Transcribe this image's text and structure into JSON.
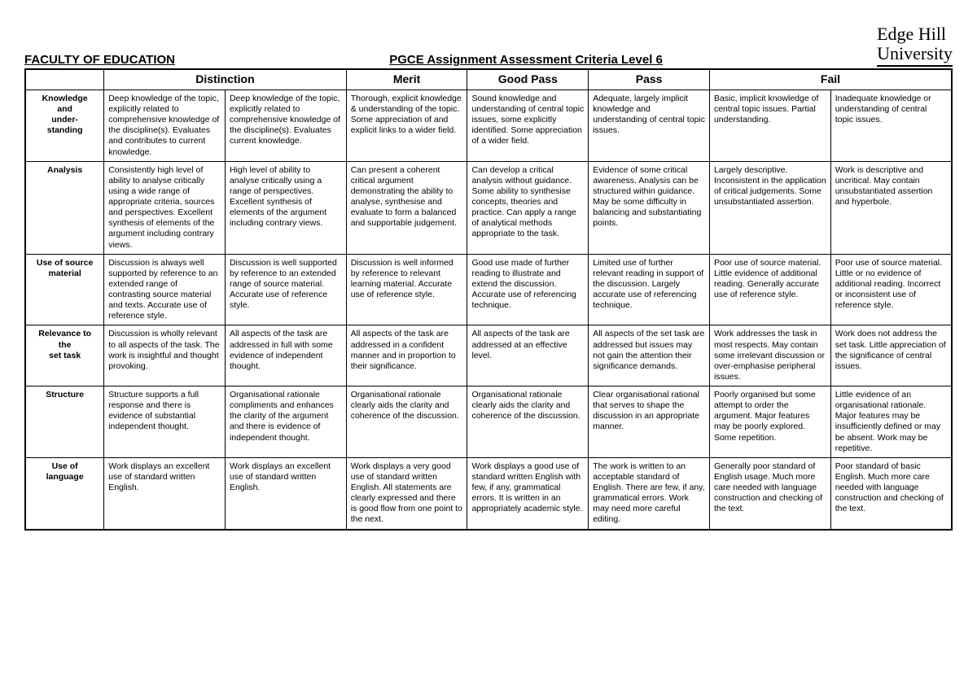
{
  "header": {
    "faculty": "FACULTY OF EDUCATION",
    "title": "PGCE Assignment Assessment Criteria Level 6",
    "university_line1": "Edge Hill",
    "university_line2": "University"
  },
  "columns": {
    "blank": "",
    "distinction": "Distinction",
    "merit": "Merit",
    "goodpass": "Good Pass",
    "pass": "Pass",
    "fail": "Fail"
  },
  "rows": [
    {
      "criterion": "Knowledge and under-standing",
      "cells": [
        "Deep knowledge of the topic, explicitly related to comprehensive knowledge of the discipline(s). Evaluates and contributes to current knowledge.",
        "Deep knowledge of the topic, explicitly related to comprehensive knowledge of the discipline(s). Evaluates current knowledge.",
        "Thorough, explicit knowledge & understanding of the topic. Some appreciation of and explicit links to a wider field.",
        "Sound knowledge and understanding of central topic issues, some explicitly identified. Some appreciation of a wider field.",
        "Adequate, largely implicit knowledge and understanding of central topic issues.",
        "Basic, implicit knowledge of central topic issues. Partial understanding.",
        "Inadequate knowledge or understanding of central topic issues."
      ]
    },
    {
      "criterion": "Analysis",
      "cells": [
        "Consistently high level of ability to analyse critically using a wide range of appropriate criteria, sources and perspectives. Excellent synthesis of elements of the argument including contrary views.",
        "High level of ability to analyse critically using a range of perspectives. Excellent synthesis of elements of the argument including contrary views.",
        "Can present a coherent critical argument demonstrating the ability to analyse, synthesise and evaluate to form a balanced and supportable judgement.",
        "Can develop a critical analysis without guidance. Some ability to synthesise concepts, theories and practice. Can apply a range of analytical methods appropriate to the task.",
        "Evidence of some critical awareness. Analysis can be structured within guidance. May be some difficulty in balancing and substantiating points.",
        "Largely descriptive. Inconsistent in the application of critical judgements. Some unsubstantiated assertion.",
        "Work is descriptive and uncritical. May contain unsubstantiated assertion and hyperbole."
      ]
    },
    {
      "criterion": "Use of source material",
      "cells": [
        "Discussion is always well supported by reference to an extended range of contrasting source material and texts.  Accurate use of reference style.",
        "Discussion is well supported by reference to an extended range of source material. Accurate use of reference style.",
        "Discussion is well informed by reference to relevant learning material. Accurate use of reference style.",
        "Good use made of further reading to illustrate and extend the discussion. Accurate use of referencing technique.",
        "Limited use of further relevant reading in support of the discussion. Largely accurate use of referencing technique.",
        "Poor use of source material. Little evidence of additional reading. Generally accurate use of reference style.",
        "Poor use of source material. Little or no evidence of additional reading. Incorrect or inconsistent use of reference style."
      ]
    },
    {
      "criterion": "Relevance to the set task",
      "cells": [
        "Discussion is wholly relevant to all aspects of the task. The work is insightful and thought provoking.",
        "All aspects of the task are addressed in full with some evidence of independent thought.",
        "All aspects of the task are addressed in a confident manner and in proportion to their significance.",
        "All aspects of the task are addressed at an effective level.",
        "All aspects of the set task are addressed but issues may not gain the attention their significance demands.",
        "Work addresses the task in most respects. May contain some irrelevant discussion or over-emphasise peripheral issues.",
        "Work does not address the set task. Little appreciation of the significance of central issues."
      ]
    },
    {
      "criterion": "Structure",
      "cells": [
        "Structure supports a full response and there is evidence of substantial independent thought.",
        "Organisational rationale compliments and enhances the clarity of the argument and there is evidence of independent thought.",
        "Organisational rationale clearly aids the clarity and coherence of the discussion.",
        "Organisational rationale clearly aids the clarity and coherence of the discussion.",
        "Clear organisational rational that serves to shape the discussion in an appropriate manner.",
        "Poorly organised but some attempt to order the argument. Major features may be poorly explored. Some repetition.",
        "Little evidence of an organisational rationale. Major features may be insufficiently defined or may be absent. Work may be repetitive."
      ]
    },
    {
      "criterion": "Use of language",
      "cells": [
        "Work displays an excellent use of standard written English.",
        "Work displays an excellent use of standard written English.",
        "Work displays a very good use of standard written English. All statements are clearly expressed and there is good flow from one point to the next.",
        "Work displays a good use of standard written English with few, if any, grammatical errors. It is written in an appropriately academic style.",
        "The work is written to an acceptable standard of English. There are few, if any, grammatical errors. Work may need more careful editing.",
        "Generally poor standard of English usage. Much more care needed with language construction and checking of the text.",
        "Poor standard of basic English. Much more care needed with language construction and checking of the text."
      ]
    }
  ]
}
